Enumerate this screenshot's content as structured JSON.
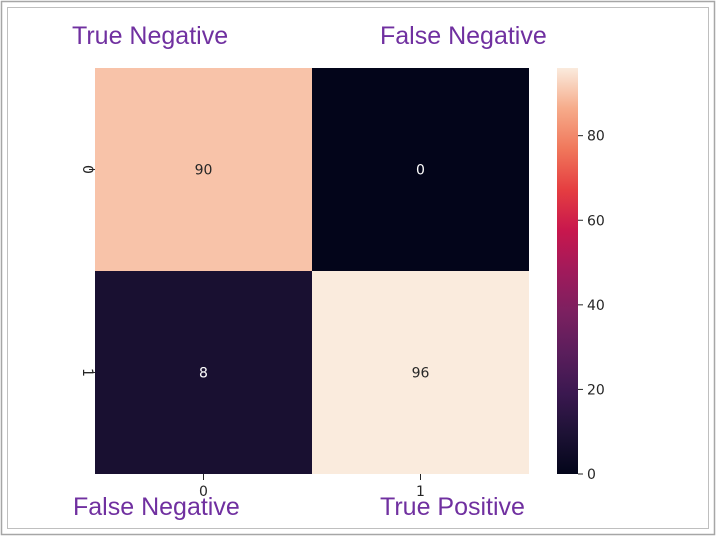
{
  "colors": {
    "annotation": "#7030a0",
    "frame": "#a6a6a6",
    "cell_text_light": "#ffffff",
    "cell_text_dark": "#262626"
  },
  "annotations": {
    "top_left": "True Negative",
    "top_right": "False Negative",
    "bottom_left": "False Negative",
    "bottom_right": "True Positive"
  },
  "chart_data": {
    "type": "heatmap",
    "title": "",
    "xlabel": "",
    "ylabel": "",
    "x_categories": [
      "0",
      "1"
    ],
    "y_categories": [
      "0",
      "1"
    ],
    "matrix": [
      [
        90,
        0
      ],
      [
        8,
        96
      ]
    ],
    "colorbar": {
      "range": [
        0,
        96
      ],
      "ticks": [
        "0",
        "20",
        "40",
        "60",
        "80"
      ],
      "colormap": "rocket"
    },
    "annotated": true,
    "grid": false
  }
}
